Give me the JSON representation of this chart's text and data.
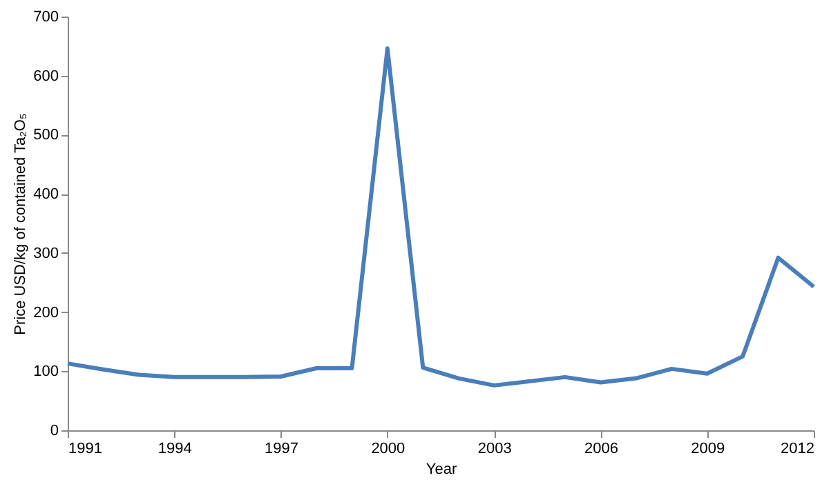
{
  "chart_data": {
    "type": "line",
    "xlabel": "Year",
    "ylabel": "Price USD/kg of contained Ta₂O₅",
    "x": [
      1991,
      1992,
      1993,
      1994,
      1995,
      1996,
      1997,
      1998,
      1999,
      2000,
      2001,
      2002,
      2003,
      2004,
      2005,
      2006,
      2007,
      2008,
      2009,
      2010,
      2011,
      2012
    ],
    "series": [
      {
        "color": "#4a7ebb",
        "values": [
          113,
          103,
          94,
          90,
          90,
          90,
          91,
          105,
          105,
          646,
          106,
          88,
          76,
          83,
          90,
          81,
          88,
          104,
          96,
          125,
          292,
          243
        ]
      }
    ],
    "xlim": [
      1991,
      2012
    ],
    "xticks": [
      1991,
      1994,
      1997,
      2000,
      2003,
      2006,
      2009,
      2012
    ],
    "ylim": [
      0,
      700
    ],
    "yticks": [
      0,
      100,
      200,
      300,
      400,
      500,
      600,
      700
    ],
    "grid": false,
    "legend": false,
    "marker": "none",
    "line_style": "solid"
  }
}
